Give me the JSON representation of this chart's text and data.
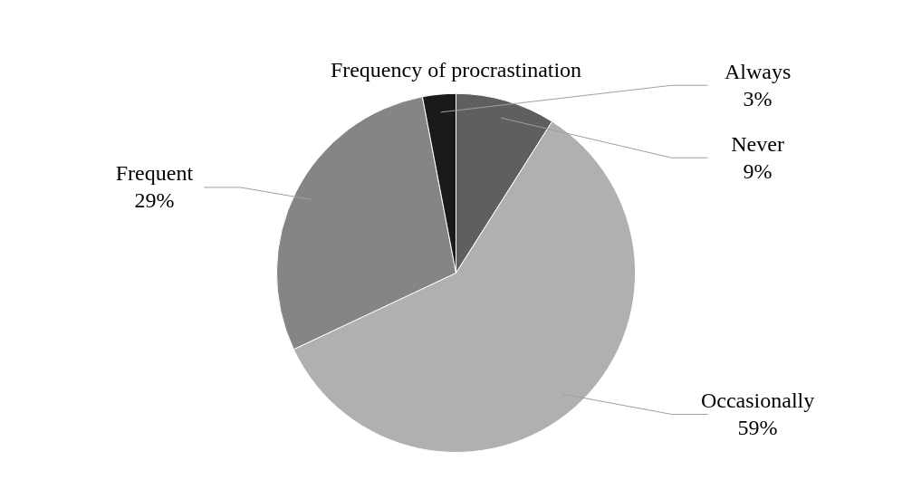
{
  "chart_data": {
    "type": "pie",
    "title": "Frequency of procrastination",
    "categories": [
      "Never",
      "Occasionally",
      "Frequent",
      "Always"
    ],
    "values": [
      9,
      59,
      29,
      3
    ],
    "colors": [
      "#5f5f5f",
      "#b0b0b0",
      "#858585",
      "#1a1a1a"
    ],
    "value_labels": [
      "9%",
      "59%",
      "29%",
      "3%"
    ],
    "legend": false
  }
}
